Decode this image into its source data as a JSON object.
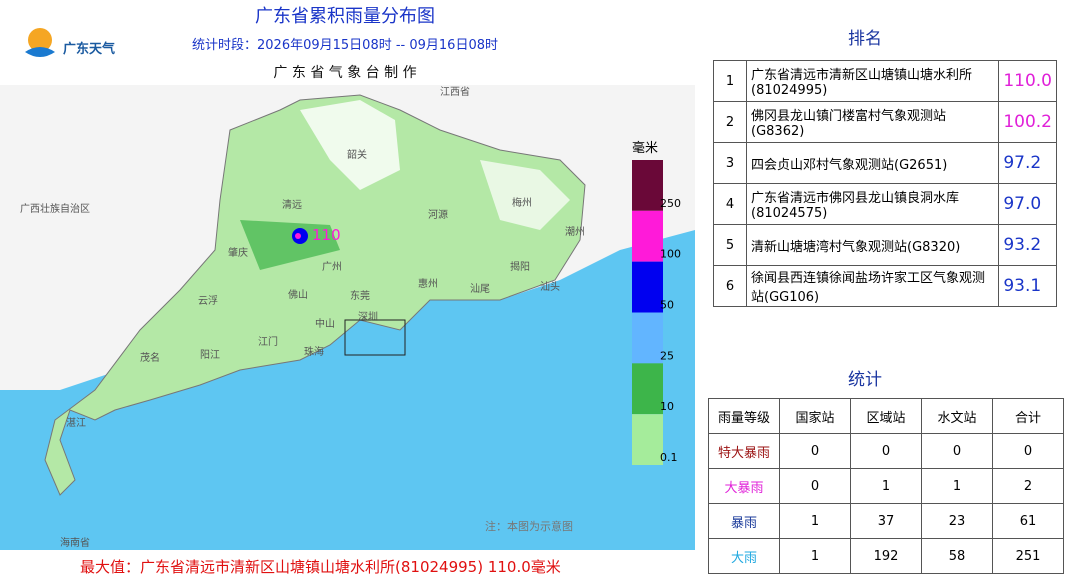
{
  "header": {
    "title": "广东省累积雨量分布图",
    "period": "统计时段：2026年09月15日08时  --  09月16日08时",
    "agency": "广 东 省 气 象 台 制 作",
    "logo": "广东天气"
  },
  "map": {
    "labels": [
      "江西省",
      "广西壮族自治区",
      "海南省",
      "韶关",
      "清远",
      "河源",
      "梅州",
      "潮州",
      "揭阳",
      "汕头",
      "汕尾",
      "惠州",
      "广州",
      "肇庆",
      "云浮",
      "佛山",
      "东莞",
      "深圳",
      "中山",
      "珠海",
      "江门",
      "阳江",
      "茂名",
      "湛江"
    ],
    "max_label": "110",
    "note": "注：本图为示意图",
    "footer": "最大值：广东省清远市清新区山塘镇山塘水利所(81024995) 110.0毫米"
  },
  "legend": {
    "unit": "毫米",
    "bands": [
      {
        "color": "#6a0838",
        "from": 250
      },
      {
        "color": "#ff1ad9",
        "from": 100
      },
      {
        "color": "#0000f0",
        "from": 50
      },
      {
        "color": "#62b5ff",
        "from": 25
      },
      {
        "color": "#3db54a",
        "from": 10
      },
      {
        "color": "#a5ec9b",
        "from": 0.1
      }
    ]
  },
  "ranking": {
    "title": "排名",
    "rows": [
      {
        "rank": "1",
        "station": "广东省清远市清新区山塘镇山塘水利所(81024995)",
        "value": "110.0",
        "color": "#e020d8"
      },
      {
        "rank": "2",
        "station": "佛冈县龙山镇门楼富村气象观测站(G8362)",
        "value": "100.2",
        "color": "#e020d8"
      },
      {
        "rank": "3",
        "station": "四会贞山邓村气象观测站(G2651)",
        "value": "97.2",
        "color": "#1a35c8"
      },
      {
        "rank": "4",
        "station": "广东省清远市佛冈县龙山镇良洞水库(81024575)",
        "value": "97.0",
        "color": "#1a35c8"
      },
      {
        "rank": "5",
        "station": "清新山塘塘湾村气象观测站(G8320)",
        "value": "93.2",
        "color": "#1a35c8"
      },
      {
        "rank": "6",
        "station": "徐闻县西连镇徐闻盐场许家工区气象观测站(GG106)",
        "value": "93.1",
        "color": "#1a35c8"
      }
    ]
  },
  "stats": {
    "title": "统计",
    "headers": [
      "雨量等级",
      "国家站",
      "区域站",
      "水文站",
      "合计"
    ],
    "rows": [
      {
        "level": "特大暴雨",
        "color": "#9a1010",
        "values": [
          0,
          0,
          0,
          0
        ]
      },
      {
        "level": "大暴雨",
        "color": "#e020d8",
        "values": [
          0,
          1,
          1,
          2
        ]
      },
      {
        "level": "暴雨",
        "color": "#1a3a9a",
        "values": [
          1,
          37,
          23,
          61
        ]
      },
      {
        "level": "大雨",
        "color": "#1ea8e0",
        "values": [
          1,
          192,
          58,
          251
        ]
      }
    ]
  }
}
